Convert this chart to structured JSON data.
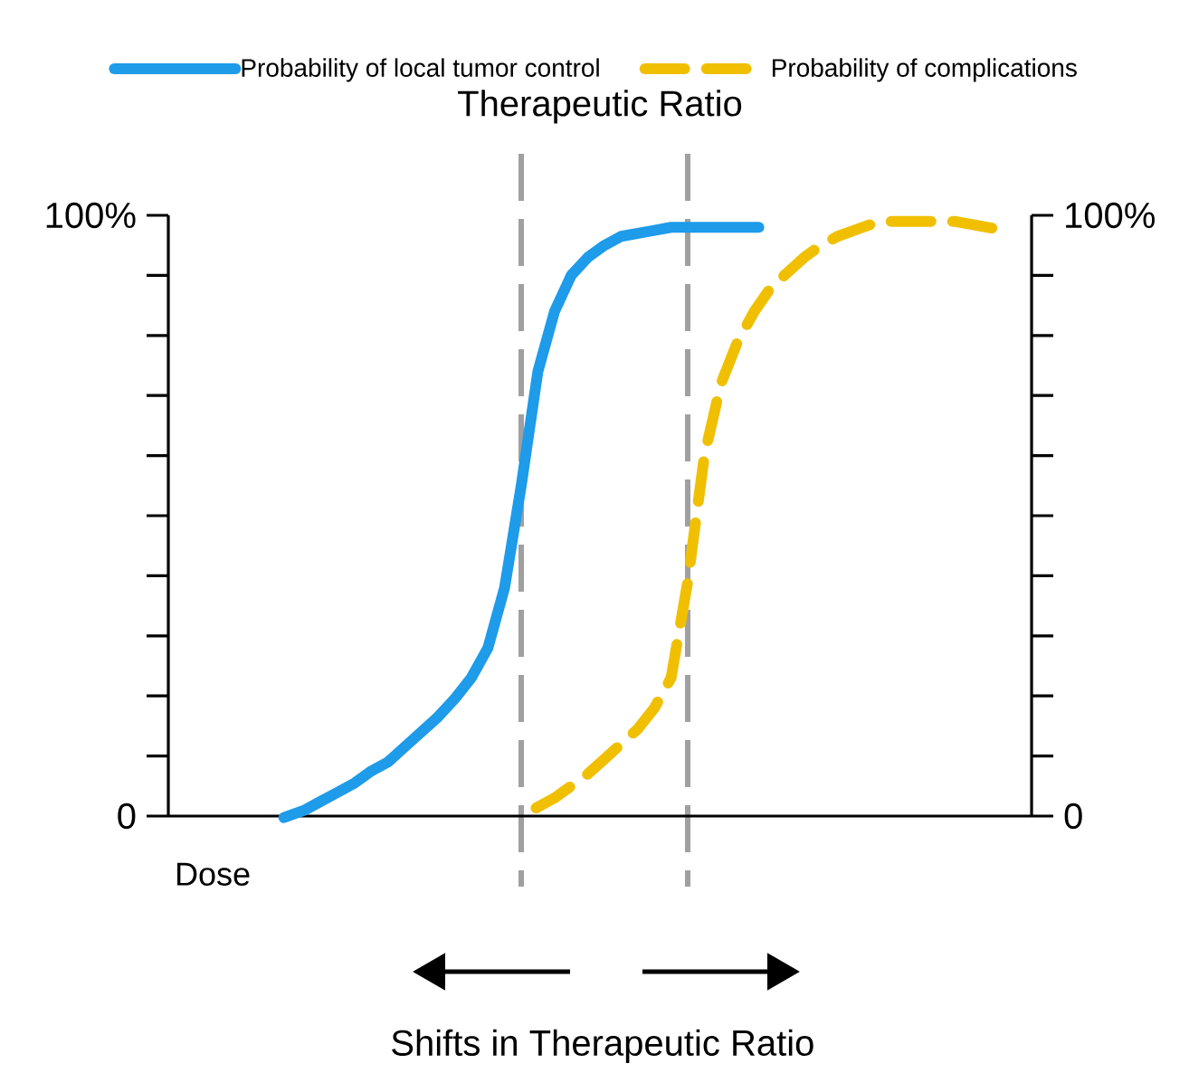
{
  "chart_data": {
    "type": "line",
    "title": "Therapeutic Ratio",
    "xlabel": "Dose",
    "categories": [
      null,
      null,
      null,
      null,
      null,
      null,
      null,
      null,
      null,
      null,
      null,
      null,
      null,
      null,
      null,
      null,
      null,
      null,
      null,
      null,
      null,
      null,
      null,
      null,
      null,
      null,
      null,
      null,
      null,
      null,
      null,
      null,
      null,
      null,
      null,
      null,
      null,
      null,
      null,
      null,
      null,
      null,
      null,
      null,
      null,
      null,
      null,
      null,
      null,
      null,
      null
    ],
    "series": [
      {
        "name": "Probability of local tumor control",
        "color": "#1e9be9",
        "line_style": "solid",
        "values": [
          null,
          null,
          null,
          null,
          null,
          null,
          0,
          1,
          2.5,
          4,
          5.5,
          7.5,
          9,
          11.5,
          14,
          16.5,
          19.5,
          23,
          28,
          38,
          55,
          74,
          84,
          90,
          93,
          95,
          96.5,
          97,
          97.5,
          98,
          98,
          98,
          98,
          98,
          98,
          null,
          null,
          null,
          null,
          null,
          null,
          null,
          null,
          null,
          null,
          null,
          null,
          null,
          null,
          null,
          null
        ]
      },
      {
        "name": "Probability of complications",
        "color": "#f0c000",
        "line_style": "dashed",
        "values": [
          null,
          null,
          null,
          null,
          null,
          null,
          null,
          null,
          null,
          null,
          null,
          null,
          null,
          null,
          null,
          null,
          null,
          null,
          null,
          null,
          0,
          1.5,
          3,
          5,
          7,
          9.5,
          12,
          14.5,
          18,
          23,
          39,
          60,
          72,
          79,
          84,
          88,
          90.5,
          93,
          95,
          96.5,
          97.5,
          98.5,
          99,
          99,
          99,
          99,
          99,
          98.5,
          98,
          null,
          null
        ]
      }
    ],
    "ylim": [
      0,
      100
    ],
    "yticks": [
      0,
      {
        "value": 10,
        "label": null
      },
      {
        "value": 20,
        "label": null
      },
      {
        "value": 30,
        "label": null
      },
      {
        "value": 40,
        "label": null
      },
      {
        "value": 50,
        "label": null
      },
      {
        "value": 60,
        "label": null
      },
      {
        "value": 70,
        "label": null
      },
      {
        "value": 80,
        "label": null
      },
      {
        "value": 90,
        "label": null
      },
      {
        "value": 100,
        "label": "100%"
      }
    ],
    "y2lim": [
      0,
      100
    ],
    "y2ticks": [
      0,
      {
        "value": 10,
        "label": null
      },
      {
        "value": 20,
        "label": null
      },
      {
        "value": 30,
        "label": null
      },
      {
        "value": 40,
        "label": null
      },
      {
        "value": 50,
        "label": null
      },
      {
        "value": 60,
        "label": null
      },
      {
        "value": 70,
        "label": null
      },
      {
        "value": 80,
        "label": null
      },
      {
        "value": 90,
        "label": null
      },
      {
        "value": 100,
        "label": "100%"
      }
    ],
    "annotations": [
      "Shifts in Therapeutic Ratio"
    ],
    "legend": "top",
    "grid": false
  }
}
